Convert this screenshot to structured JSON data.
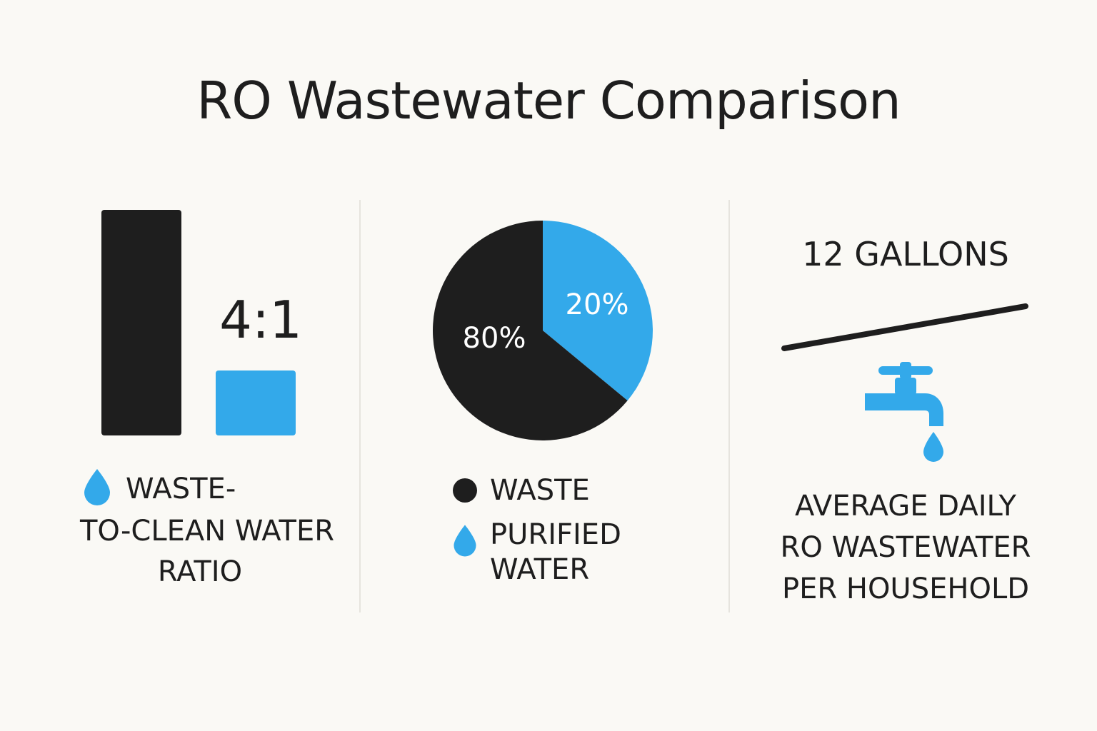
{
  "title": "RO Wastewater Comparison",
  "colors": {
    "background": "#faf9f5",
    "dark": "#1e1e1e",
    "blue": "#33a9ea"
  },
  "panel_ratio": {
    "ratio_text": "4:1",
    "caption_line1": "WASTE-",
    "caption_line2": "TO-CLEAN WATER",
    "caption_line3": "RATIO",
    "icon": "water-drop-icon"
  },
  "panel_split": {
    "legend": [
      {
        "label": "WASTE",
        "icon": "circle-icon"
      },
      {
        "label_line1": "PURIFIED",
        "label_line2": "WATER",
        "icon": "water-drop-icon"
      }
    ]
  },
  "panel_gallons": {
    "amount": "12 GALLONS",
    "icon": "faucet-icon",
    "caption_line1": "AVERAGE DAILY",
    "caption_line2": "RO WASTEWATER",
    "caption_line3": "PER HOUSEHOLD"
  },
  "chart_data": [
    {
      "type": "bar",
      "categories": [
        "Waste",
        "Clean"
      ],
      "values": [
        4,
        1
      ],
      "annotation": "4:1"
    },
    {
      "type": "pie",
      "labels": [
        "Waste",
        "Purified Water"
      ],
      "values": [
        80,
        20
      ],
      "data_labels": [
        "80%",
        "20%"
      ],
      "colors": [
        "#1e1e1e",
        "#33a9ea"
      ]
    }
  ]
}
